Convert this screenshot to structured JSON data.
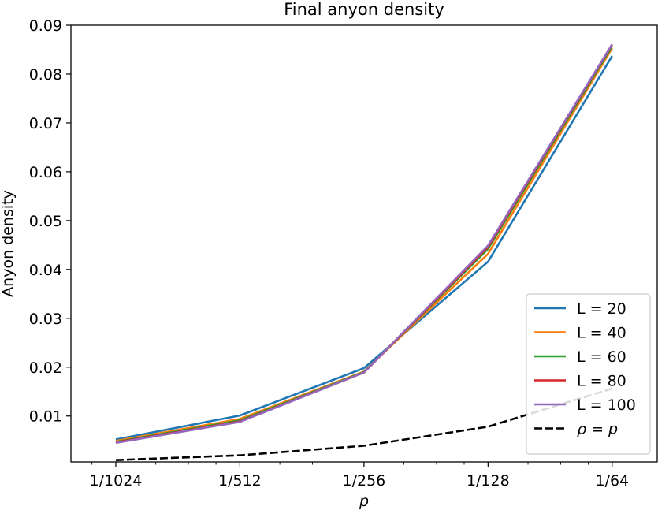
{
  "chart_data": {
    "type": "line",
    "title": "Final anyon density",
    "xlabel": "p",
    "ylabel": "Anyon density",
    "x_scale": "log2",
    "x_ticks": [
      {
        "value": 0.0009765625,
        "label": "1/1024"
      },
      {
        "value": 0.001953125,
        "label": "1/512"
      },
      {
        "value": 0.00390625,
        "label": "1/256"
      },
      {
        "value": 0.0078125,
        "label": "1/128"
      },
      {
        "value": 0.015625,
        "label": "1/64"
      }
    ],
    "y_ticks": [
      {
        "value": 0.01,
        "label": "0.01"
      },
      {
        "value": 0.02,
        "label": "0.02"
      },
      {
        "value": 0.03,
        "label": "0.03"
      },
      {
        "value": 0.04,
        "label": "0.04"
      },
      {
        "value": 0.05,
        "label": "0.05"
      },
      {
        "value": 0.06,
        "label": "0.06"
      },
      {
        "value": 0.07,
        "label": "0.07"
      },
      {
        "value": 0.08,
        "label": "0.08"
      },
      {
        "value": 0.09,
        "label": "0.09"
      }
    ],
    "x": [
      0.0009765625,
      0.001953125,
      0.00390625,
      0.0078125,
      0.015625
    ],
    "xlim": [
      0.00076,
      0.0201
    ],
    "ylim": [
      0.0006,
      0.09
    ],
    "grid": false,
    "legend_position": "bottom-right",
    "series": [
      {
        "name": "L = 20",
        "color": "#1f77b4",
        "dash": "solid",
        "values": [
          0.0052,
          0.0101,
          0.0198,
          0.0416,
          0.0837
        ]
      },
      {
        "name": "L = 40",
        "color": "#ff7f0e",
        "dash": "solid",
        "values": [
          0.0049,
          0.0094,
          0.0191,
          0.0432,
          0.0853
        ]
      },
      {
        "name": "L = 60",
        "color": "#2ca02c",
        "dash": "solid",
        "values": [
          0.0047,
          0.0091,
          0.019,
          0.0442,
          0.0857
        ]
      },
      {
        "name": "L = 80",
        "color": "#d62728",
        "dash": "solid",
        "values": [
          0.0046,
          0.0089,
          0.0189,
          0.0446,
          0.086
        ]
      },
      {
        "name": "L = 100",
        "color": "#9467bd",
        "dash": "solid",
        "values": [
          0.0045,
          0.0088,
          0.0189,
          0.0449,
          0.0861
        ]
      },
      {
        "name": "ρ = p",
        "color": "#000000",
        "dash": "dashed",
        "values": [
          0.0009765625,
          0.001953125,
          0.00390625,
          0.0078125,
          0.015625
        ]
      }
    ]
  }
}
